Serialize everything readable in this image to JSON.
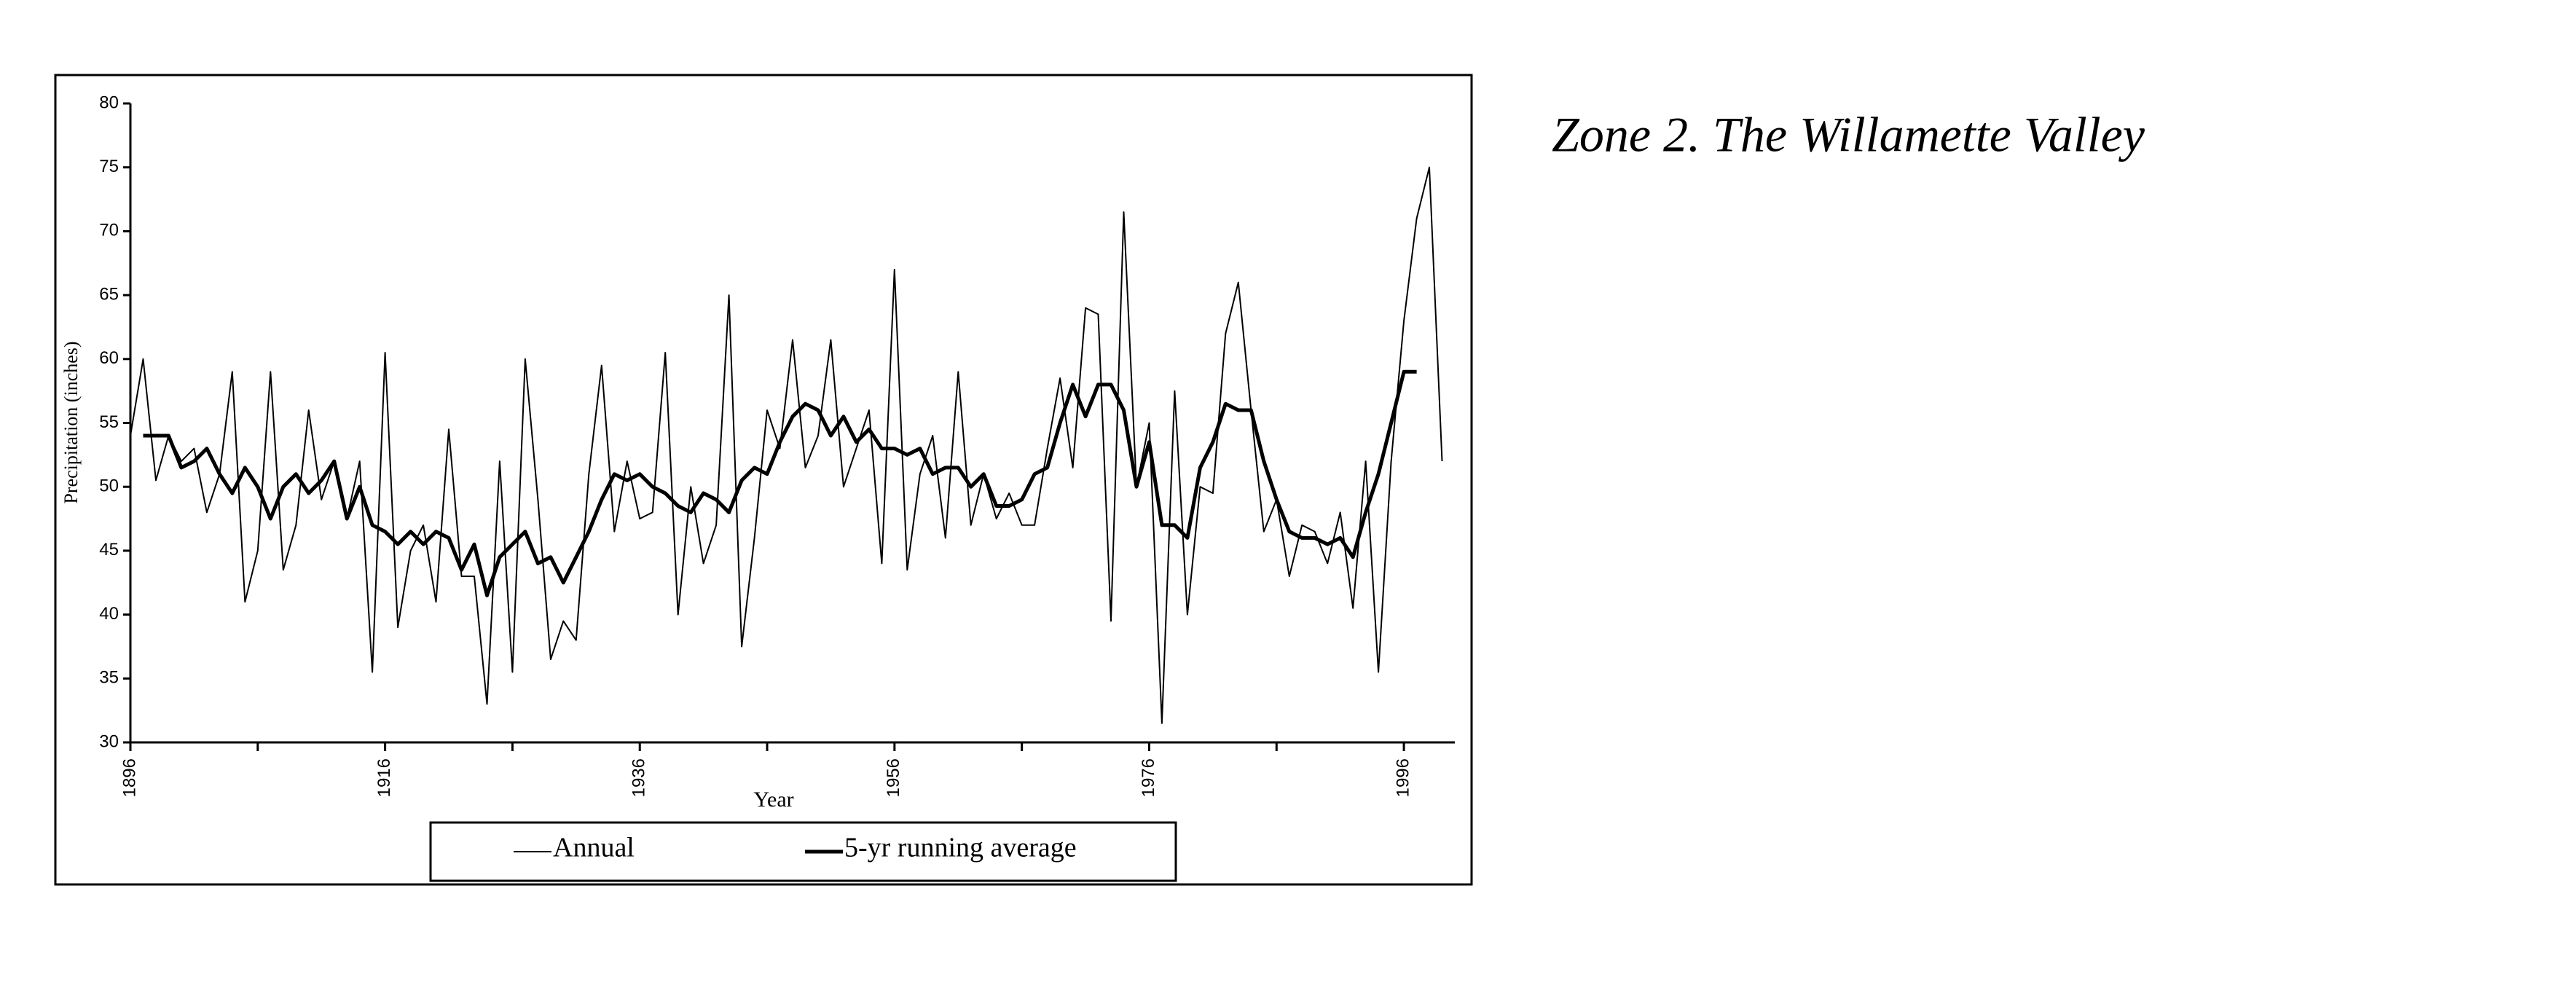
{
  "chart_data": {
    "type": "line",
    "title": "Zone 2. The Willamette Valley",
    "x_label": "Year",
    "y_label": "Precipitation (inches)",
    "x": [
      1896,
      1897,
      1898,
      1899,
      1900,
      1901,
      1902,
      1903,
      1904,
      1905,
      1906,
      1907,
      1908,
      1909,
      1910,
      1911,
      1912,
      1913,
      1914,
      1915,
      1916,
      1917,
      1918,
      1919,
      1920,
      1921,
      1922,
      1923,
      1924,
      1925,
      1926,
      1927,
      1928,
      1929,
      1930,
      1931,
      1932,
      1933,
      1934,
      1935,
      1936,
      1937,
      1938,
      1939,
      1940,
      1941,
      1942,
      1943,
      1944,
      1945,
      1946,
      1947,
      1948,
      1949,
      1950,
      1951,
      1952,
      1953,
      1954,
      1955,
      1956,
      1957,
      1958,
      1959,
      1960,
      1961,
      1962,
      1963,
      1964,
      1965,
      1966,
      1967,
      1968,
      1969,
      1970,
      1971,
      1972,
      1973,
      1974,
      1975,
      1976,
      1977,
      1978,
      1979,
      1980,
      1981,
      1982,
      1983,
      1984,
      1985,
      1986,
      1987,
      1988,
      1989,
      1990,
      1991,
      1992,
      1993,
      1994,
      1995,
      1996,
      1997,
      1998,
      1999
    ],
    "series": [
      {
        "name": "Annual",
        "color": "#000000",
        "width": 2,
        "values": [
          54,
          60,
          50.5,
          54,
          52,
          53,
          48,
          51,
          59,
          41,
          45,
          59,
          43.5,
          47,
          56,
          49,
          52,
          47.5,
          52,
          35.5,
          60.5,
          39,
          45,
          47,
          41,
          54.5,
          43,
          43,
          33,
          52,
          35.5,
          60,
          49,
          36.5,
          39.5,
          38,
          51,
          59.5,
          46.5,
          52,
          47.5,
          48,
          60.5,
          40,
          50,
          44,
          47,
          65,
          37.5,
          46,
          56,
          53,
          61.5,
          51.5,
          54,
          61.5,
          50,
          53,
          56,
          44,
          67,
          43.5,
          51,
          54,
          46,
          59,
          47,
          51,
          47.5,
          49.5,
          47,
          47,
          53,
          58.5,
          51.5,
          64,
          63.5,
          39.5,
          71.5,
          50,
          55,
          31.5,
          57.5,
          40,
          50,
          49.5,
          62,
          66,
          56,
          46.5,
          49,
          43,
          47,
          46.5,
          44,
          48,
          40.5,
          52,
          35.5,
          52,
          63,
          71,
          75,
          52
        ]
      },
      {
        "name": "5-yr running average",
        "color": "#000000",
        "width": 5,
        "values": [
          null,
          54,
          54,
          54,
          51.5,
          52,
          53,
          51,
          49.5,
          51.5,
          50,
          47.5,
          50,
          51,
          49.5,
          50.5,
          52,
          47.5,
          50,
          47,
          46.5,
          45.5,
          46.5,
          45.5,
          46.5,
          46,
          43.5,
          45.5,
          41.5,
          44.5,
          45.5,
          46.5,
          44,
          44.5,
          42.5,
          44.5,
          46.5,
          49,
          51,
          50.5,
          51,
          50,
          49.5,
          48.5,
          48,
          49.5,
          49,
          48,
          50.5,
          51.5,
          51,
          53.5,
          55.5,
          56.5,
          56,
          54,
          55.5,
          53.5,
          54.5,
          53,
          53,
          52.5,
          53,
          51,
          51.5,
          51.5,
          50,
          51,
          48.5,
          48.5,
          49,
          51,
          51.5,
          55,
          58,
          55.5,
          58,
          58,
          56,
          50,
          53.5,
          47,
          47,
          46,
          51.5,
          53.5,
          56.5,
          56,
          56,
          52,
          49,
          46.5,
          46,
          46,
          45.5,
          46,
          44.5,
          48,
          51,
          55,
          59,
          59,
          null,
          null
        ]
      }
    ],
    "xlim": [
      1896,
      2000
    ],
    "xticks": [
      1896,
      1916,
      1936,
      1956,
      1976,
      1996
    ],
    "xminorticks": [
      1906,
      1926,
      1946,
      1966,
      1986
    ],
    "ylim": [
      30,
      80
    ],
    "yticks": [
      30,
      35,
      40,
      45,
      50,
      55,
      60,
      65,
      70,
      75,
      80
    ],
    "grid": false
  }
}
